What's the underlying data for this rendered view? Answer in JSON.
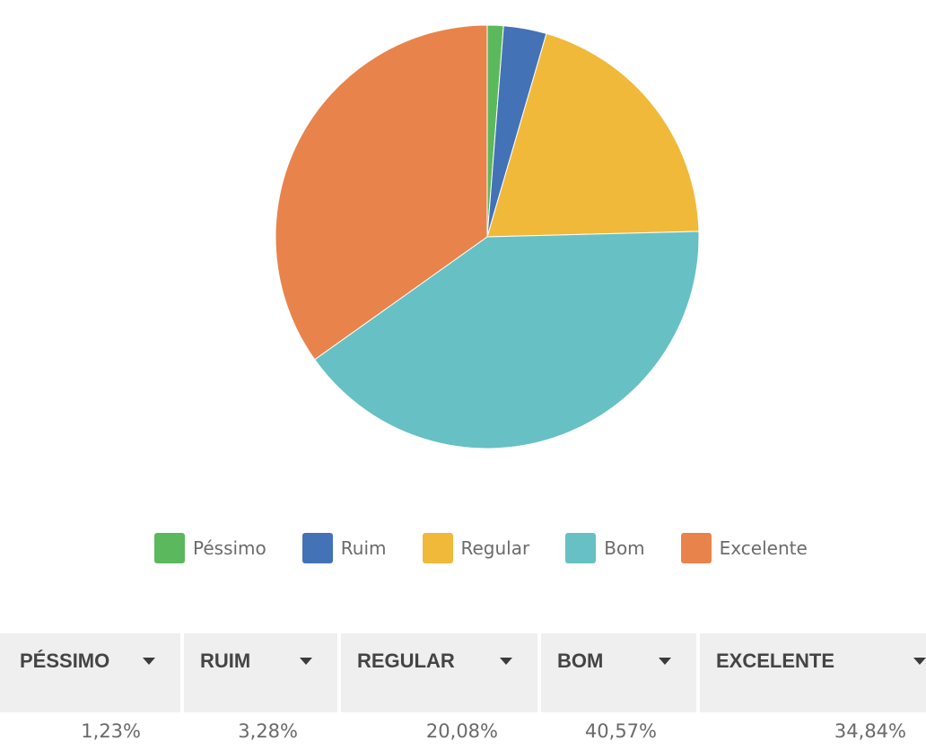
{
  "chart_data": {
    "type": "pie",
    "categories": [
      "Péssimo",
      "Ruim",
      "Regular",
      "Bom",
      "Excelente"
    ],
    "values": [
      1.23,
      3.28,
      20.08,
      40.57,
      34.84
    ],
    "colors": [
      "#5cb85c",
      "#4472b6",
      "#f0b93a",
      "#67c0c4",
      "#e8844b"
    ],
    "legend_position": "bottom"
  },
  "legend": [
    {
      "label": "Péssimo",
      "color": "#5cb85c"
    },
    {
      "label": "Ruim",
      "color": "#4472b6"
    },
    {
      "label": "Regular",
      "color": "#f0b93a"
    },
    {
      "label": "Bom",
      "color": "#67c0c4"
    },
    {
      "label": "Excelente",
      "color": "#e8844b"
    }
  ],
  "table": {
    "headers": [
      "PÉSSIMO",
      "RUIM",
      "REGULAR",
      "BOM",
      "EXCELENTE"
    ],
    "values": [
      "1,23%",
      "3,28%",
      "20,08%",
      "40,57%",
      "34,84%"
    ],
    "sort_icon": "caret-down-icon"
  }
}
